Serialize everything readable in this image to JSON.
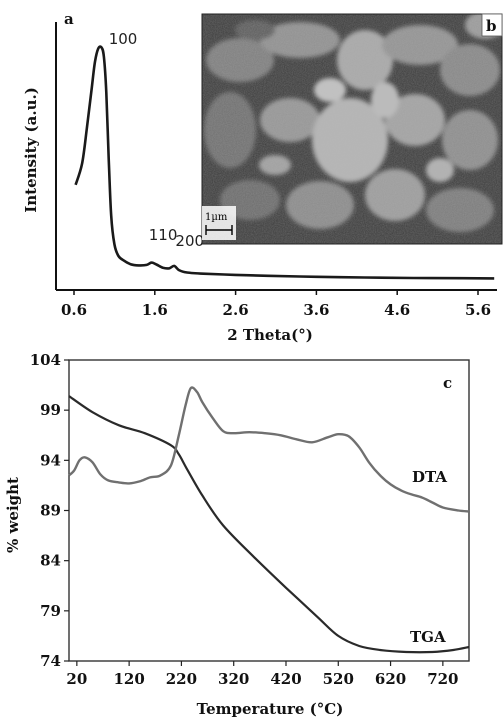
{
  "chart_data": [
    {
      "panel": "a",
      "type": "line",
      "xlabel": "2 Theta(°)",
      "ylabel": "Intensity (a.u.)",
      "xlim": [
        0.6,
        5.8
      ],
      "x_ticks": [
        "0.6",
        "1.6",
        "2.6",
        "3.6",
        "4.6",
        "5.6"
      ],
      "y_ticks": [],
      "peak_labels": [
        {
          "text": "100",
          "x": 0.98
        },
        {
          "text": "110",
          "x": 1.58
        },
        {
          "text": "200",
          "x": 1.87
        }
      ],
      "series": [
        {
          "x": [
            0.62,
            0.7,
            0.76,
            0.82,
            0.86,
            0.9,
            0.94,
            0.97,
            1.0,
            1.03,
            1.06,
            1.1,
            1.15,
            1.22,
            1.3,
            1.4,
            1.5,
            1.56,
            1.62,
            1.7,
            1.78,
            1.84,
            1.9,
            2.0,
            2.2,
            2.6,
            3.0,
            3.6,
            4.2,
            4.8,
            5.4,
            5.8
          ],
          "y": [
            0.41,
            0.5,
            0.65,
            0.82,
            0.93,
            0.985,
            0.99,
            0.95,
            0.8,
            0.52,
            0.28,
            0.16,
            0.11,
            0.09,
            0.075,
            0.07,
            0.072,
            0.082,
            0.074,
            0.06,
            0.058,
            0.068,
            0.05,
            0.04,
            0.035,
            0.03,
            0.026,
            0.022,
            0.019,
            0.017,
            0.016,
            0.015
          ]
        }
      ]
    },
    {
      "panel": "c",
      "type": "line",
      "xlabel": "Temperature (°C)",
      "ylabel": "% weight",
      "xlim": [
        5,
        770
      ],
      "ylim": [
        74,
        104
      ],
      "x_ticks": [
        "20",
        "120",
        "220",
        "320",
        "420",
        "520",
        "620",
        "720"
      ],
      "y_ticks": [
        "74",
        "79",
        "84",
        "89",
        "94",
        "99",
        "104"
      ],
      "series": [
        {
          "name": "TGA",
          "x": [
            5,
            50,
            100,
            150,
            200,
            215,
            230,
            260,
            300,
            360,
            420,
            480,
            520,
            560,
            600,
            650,
            700,
            740,
            770
          ],
          "y": [
            100.4,
            98.8,
            97.5,
            96.7,
            95.5,
            94.6,
            93.2,
            90.5,
            87.5,
            84.3,
            81.3,
            78.4,
            76.5,
            75.5,
            75.1,
            74.9,
            74.9,
            75.1,
            75.4
          ]
        },
        {
          "name": "DTA",
          "x": [
            5,
            15,
            25,
            35,
            50,
            65,
            80,
            100,
            120,
            140,
            160,
            180,
            200,
            215,
            228,
            238,
            250,
            260,
            280,
            300,
            320,
            350,
            380,
            410,
            440,
            470,
            500,
            520,
            540,
            560,
            580,
            600,
            620,
            640,
            660,
            680,
            700,
            720,
            750,
            770
          ],
          "y": [
            92.5,
            93.0,
            94.0,
            94.3,
            93.8,
            92.6,
            92.0,
            91.8,
            91.7,
            91.9,
            92.3,
            92.5,
            93.5,
            96.5,
            99.5,
            101.2,
            100.8,
            99.8,
            98.2,
            96.9,
            96.7,
            96.8,
            96.7,
            96.5,
            96.1,
            95.8,
            96.3,
            96.6,
            96.4,
            95.3,
            93.7,
            92.5,
            91.6,
            91.0,
            90.6,
            90.3,
            89.8,
            89.3,
            89.0,
            88.9
          ]
        }
      ]
    }
  ],
  "image": {
    "panel_label": "b",
    "scale_bar": "1µm"
  }
}
